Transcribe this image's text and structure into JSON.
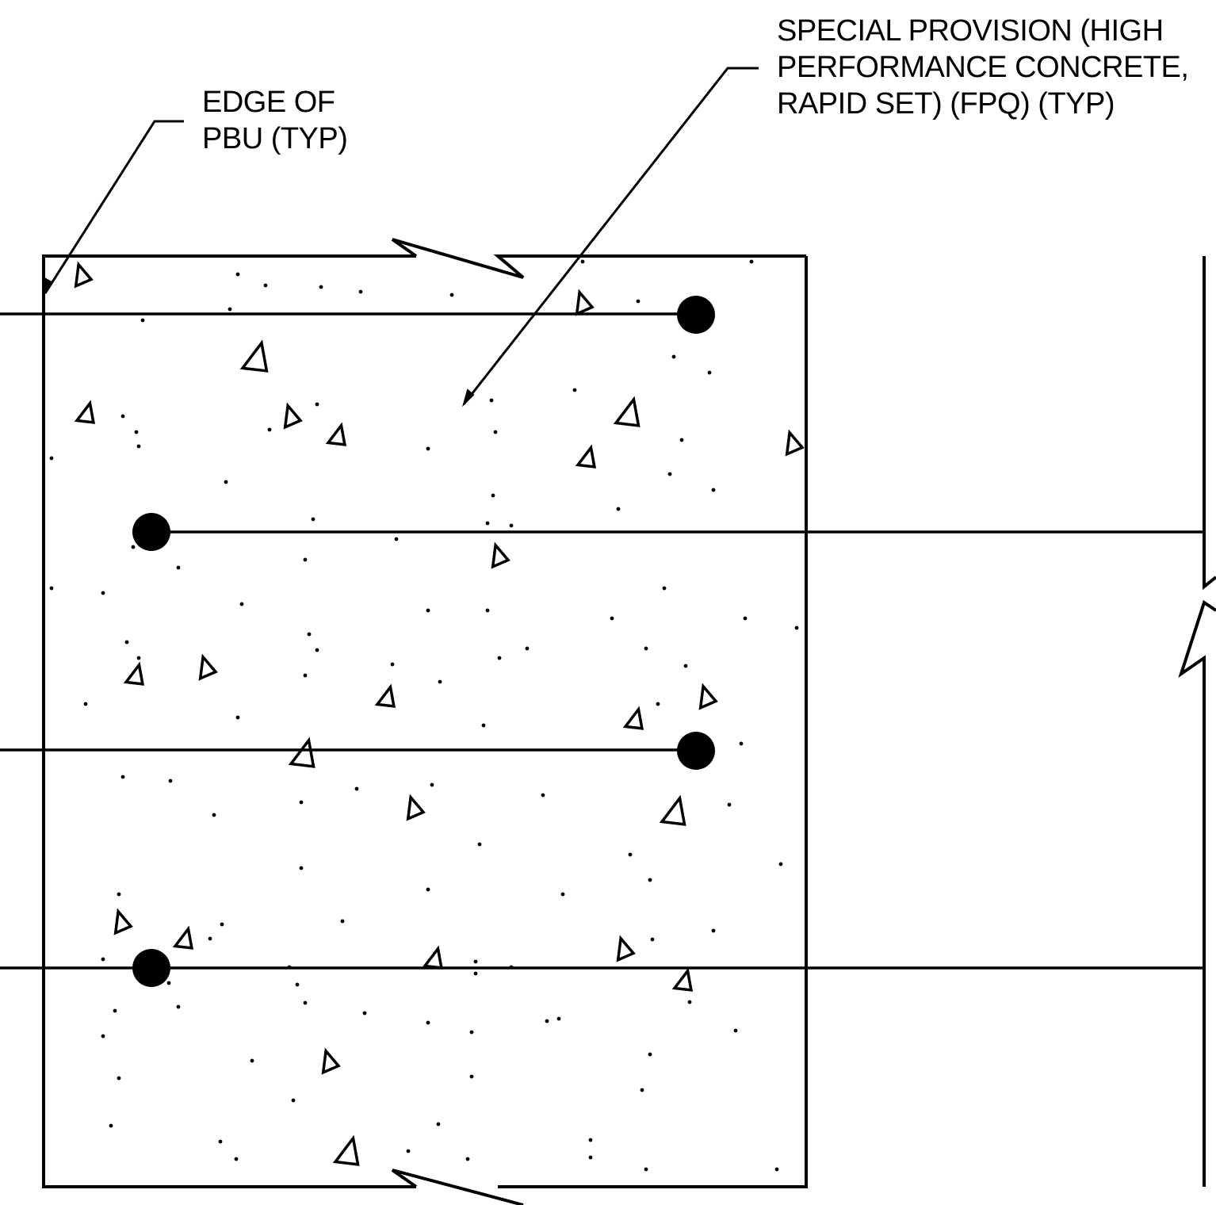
{
  "drawing": {
    "line_color": "#000000",
    "background": "#ffffff"
  },
  "callouts": {
    "edge_of_pbu": {
      "lines": [
        "EDGE OF",
        "PBU (TYP)"
      ]
    },
    "special_provision": {
      "lines": [
        "SPECIAL PROVISION (HIGH",
        "PERFORMANCE CONCRETE,",
        "RAPID SET) (FPQ) (TYP)"
      ]
    }
  }
}
